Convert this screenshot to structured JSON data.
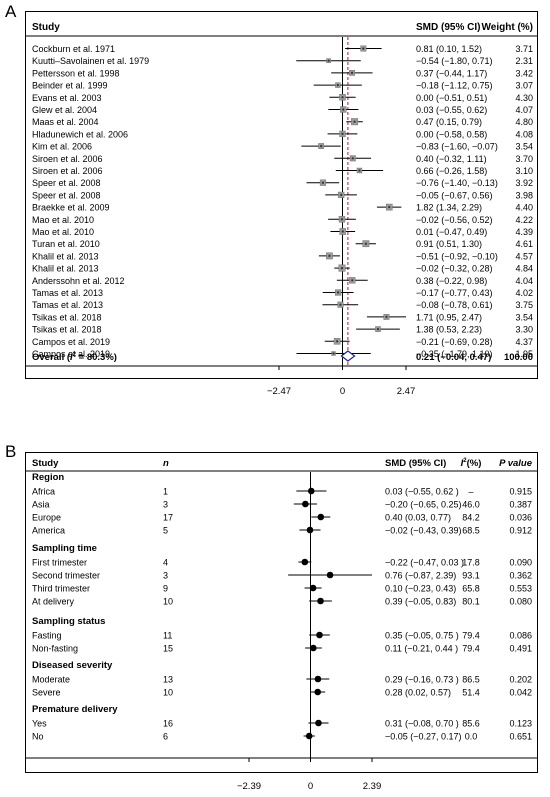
{
  "panel_a": {
    "letter": "A",
    "headers": {
      "study": "Study",
      "smd": "SMD (95% CI)",
      "weight": "Weight (%)"
    },
    "overall": {
      "label_prefix": "Overall (",
      "i2_sym": "I",
      "i2_sup": "2",
      "i2_rest": " = 80.3%)",
      "ci_text": "0.21 (−0.04, 0.47)",
      "weight": "100.00"
    }
  },
  "panel_b": {
    "letter": "B",
    "headers": {
      "study": "Study",
      "n": "n",
      "smd": "SMD (95% CI)",
      "i2_sym": "I",
      "i2_sup": "2",
      "i2_rest": "(%)",
      "p": "P value"
    }
  },
  "chart_data": [
    {
      "type": "forest",
      "panel": "A",
      "xlim": [
        -2.47,
        2.47
      ],
      "ticks": [
        "−2.47",
        "0",
        "2.47"
      ],
      "tick_values": [
        -2.47,
        0,
        2.47
      ],
      "reference_line": 0,
      "overall_line": 0.21,
      "rows": [
        {
          "study": "Cockburn et al. 1971",
          "smd": 0.81,
          "lo": 0.1,
          "hi": 1.52,
          "ci_text": "0.81 (0.10, 1.52)",
          "weight": "3.71"
        },
        {
          "study": "Kuutti–Savolainen et al. 1979",
          "smd": -0.54,
          "lo": -1.8,
          "hi": 0.71,
          "ci_text": "−0.54 (−1.80, 0.71)",
          "weight": "2.31"
        },
        {
          "study": "Pettersson et al. 1998",
          "smd": 0.37,
          "lo": -0.44,
          "hi": 1.17,
          "ci_text": "0.37 (−0.44, 1.17)",
          "weight": "3.42"
        },
        {
          "study": "Beinder et al. 1999",
          "smd": -0.18,
          "lo": -1.12,
          "hi": 0.75,
          "ci_text": "−0.18 (−1.12, 0.75)",
          "weight": "3.07"
        },
        {
          "study": "Evans et al. 2003",
          "smd": 0.0,
          "lo": -0.51,
          "hi": 0.51,
          "ci_text": "0.00 (−0.51, 0.51)",
          "weight": "4.30"
        },
        {
          "study": "Glew et al. 2004",
          "smd": 0.03,
          "lo": -0.55,
          "hi": 0.62,
          "ci_text": "0.03 (−0.55, 0.62)",
          "weight": "4.07"
        },
        {
          "study": "Maas et al. 2004",
          "smd": 0.47,
          "lo": 0.15,
          "hi": 0.79,
          "ci_text": "0.47 (0.15, 0.79)",
          "weight": "4.80"
        },
        {
          "study": "Hladunewich et al. 2006",
          "smd": 0.0,
          "lo": -0.58,
          "hi": 0.58,
          "ci_text": "0.00 (−0.58, 0.58)",
          "weight": "4.08"
        },
        {
          "study": "Kim et al. 2006",
          "smd": -0.83,
          "lo": -1.6,
          "hi": -0.07,
          "ci_text": "−0.83 (−1.60, −0.07)",
          "weight": "3.54"
        },
        {
          "study": "Siroen et al. 2006",
          "smd": 0.4,
          "lo": -0.32,
          "hi": 1.11,
          "ci_text": "0.40 (−0.32, 1.11)",
          "weight": "3.70"
        },
        {
          "study": "Siroen et al. 2006",
          "smd": 0.66,
          "lo": -0.26,
          "hi": 1.58,
          "ci_text": "0.66 (−0.26, 1.58)",
          "weight": "3.10"
        },
        {
          "study": "Speer et al. 2008",
          "smd": -0.76,
          "lo": -1.4,
          "hi": -0.13,
          "ci_text": "−0.76 (−1.40, −0.13)",
          "weight": "3.92"
        },
        {
          "study": "Speer et al. 2008",
          "smd": -0.05,
          "lo": -0.67,
          "hi": 0.56,
          "ci_text": "−0.05 (−0.67, 0.56)",
          "weight": "3.98"
        },
        {
          "study": "Braekke et al. 2009",
          "smd": 1.82,
          "lo": 1.34,
          "hi": 2.29,
          "ci_text": "1.82 (1.34, 2.29)",
          "weight": "4.40"
        },
        {
          "study": "Mao et al. 2010",
          "smd": -0.02,
          "lo": -0.56,
          "hi": 0.52,
          "ci_text": "−0.02 (−0.56, 0.52)",
          "weight": "4.22"
        },
        {
          "study": "Mao et al. 2010",
          "smd": 0.01,
          "lo": -0.47,
          "hi": 0.49,
          "ci_text": "0.01 (−0.47, 0.49)",
          "weight": "4.39"
        },
        {
          "study": "Turan et al. 2010",
          "smd": 0.91,
          "lo": 0.51,
          "hi": 1.3,
          "ci_text": "0.91 (0.51, 1.30)",
          "weight": "4.61"
        },
        {
          "study": "Khalil et al. 2013",
          "smd": -0.51,
          "lo": -0.92,
          "hi": -0.1,
          "ci_text": "−0.51 (−0.92, −0.10)",
          "weight": "4.57"
        },
        {
          "study": "Khalil et al. 2013",
          "smd": -0.02,
          "lo": -0.32,
          "hi": 0.28,
          "ci_text": "−0.02 (−0.32, 0.28)",
          "weight": "4.84"
        },
        {
          "study": "Anderssohn et al. 2012",
          "smd": 0.38,
          "lo": -0.22,
          "hi": 0.98,
          "ci_text": "0.38 (−0.22, 0.98)",
          "weight": "4.04"
        },
        {
          "study": "Tamas et al. 2013",
          "smd": -0.17,
          "lo": -0.77,
          "hi": 0.43,
          "ci_text": "−0.17 (−0.77, 0.43)",
          "weight": "4.02"
        },
        {
          "study": "Tamas et al. 2013",
          "smd": -0.08,
          "lo": -0.78,
          "hi": 0.61,
          "ci_text": "−0.08 (−0.78, 0.61)",
          "weight": "3.75"
        },
        {
          "study": "Tsikas et al. 2018",
          "smd": 1.71,
          "lo": 0.95,
          "hi": 2.47,
          "ci_text": "1.71 (0.95, 2.47)",
          "weight": "3.54"
        },
        {
          "study": "Tsikas et al. 2018",
          "smd": 1.38,
          "lo": 0.53,
          "hi": 2.23,
          "ci_text": "1.38 (0.53, 2.23)",
          "weight": "3.30"
        },
        {
          "study": "Campos et al. 2019",
          "smd": -0.21,
          "lo": -0.69,
          "hi": 0.28,
          "ci_text": "−0.21 (−0.69, 0.28)",
          "weight": "4.37"
        },
        {
          "study": "Campos et al. 2019",
          "smd": -0.35,
          "lo": -1.79,
          "hi": 1.1,
          "ci_text": "−0.35 (−1.79, 1.10)",
          "weight": "1.95"
        }
      ],
      "overall": {
        "smd": 0.21,
        "lo": -0.04,
        "hi": 0.47
      },
      "colors": {
        "box": "#9a9a9a",
        "diamond": "#1a2a8c",
        "overall_line": "#a0203a"
      }
    },
    {
      "type": "forest",
      "panel": "B",
      "xlim": [
        -2.39,
        2.39
      ],
      "ticks": [
        "−2.39",
        "0",
        "2.39"
      ],
      "tick_values": [
        -2.39,
        0,
        2.39
      ],
      "reference_line": 0,
      "groups": [
        {
          "name": "Region",
          "rows": [
            {
              "label": "Africa",
              "n": "1",
              "smd": 0.03,
              "lo": -0.55,
              "hi": 0.62,
              "ci_text": "0.03 (−0.55, 0.62 )",
              "i2": "–",
              "p": "0.915"
            },
            {
              "label": "Asia",
              "n": "3",
              "smd": -0.2,
              "lo": -0.65,
              "hi": 0.25,
              "ci_text": "−0.20 (−0.65, 0.25)",
              "i2": "46.0",
              "p": "0.387"
            },
            {
              "label": "Europe",
              "n": "17",
              "smd": 0.4,
              "lo": 0.03,
              "hi": 0.77,
              "ci_text": "0.40 (0.03, 0.77)",
              "i2": "84.2",
              "p": "0.036"
            },
            {
              "label": "America",
              "n": "5",
              "smd": -0.02,
              "lo": -0.43,
              "hi": 0.39,
              "ci_text": "−0.02 (−0.43, 0.39)",
              "i2": "68.5",
              "p": "0.912"
            }
          ]
        },
        {
          "name": "Sampling time",
          "rows": [
            {
              "label": "First trimester",
              "n": "4",
              "smd": -0.22,
              "lo": -0.47,
              "hi": 0.03,
              "ci_text": "−0.22 (−0.47, 0.03 )",
              "i2": "17.8",
              "p": "0.090"
            },
            {
              "label": "Second trimester",
              "n": "3",
              "smd": 0.76,
              "lo": -0.87,
              "hi": 2.39,
              "ci_text": "0.76 (−0.87, 2.39)",
              "i2": "93.1",
              "p": "0.362"
            },
            {
              "label": "Third trimester",
              "n": "9",
              "smd": 0.1,
              "lo": -0.23,
              "hi": 0.43,
              "ci_text": "0.10 (−0.23, 0.43)",
              "i2": "65.8",
              "p": "0.553"
            },
            {
              "label": "At delivery",
              "n": "10",
              "smd": 0.39,
              "lo": -0.05,
              "hi": 0.83,
              "ci_text": "0.39 (−0.05, 0.83)",
              "i2": "80.1",
              "p": "0.080"
            }
          ]
        },
        {
          "name": "Sampling status",
          "rows": [
            {
              "label": "Fasting",
              "n": "11",
              "smd": 0.35,
              "lo": -0.05,
              "hi": 0.75,
              "ci_text": "0.35 (−0.05, 0.75 )",
              "i2": "79.4",
              "p": "0.086"
            },
            {
              "label": "Non-fasting",
              "n": "15",
              "smd": 0.11,
              "lo": -0.21,
              "hi": 0.44,
              "ci_text": "0.11 (−0.21, 0.44 )",
              "i2": "79.4",
              "p": "0.491"
            }
          ]
        },
        {
          "name": "Diseased severity",
          "rows": [
            {
              "label": "Moderate",
              "n": "13",
              "smd": 0.29,
              "lo": -0.16,
              "hi": 0.73,
              "ci_text": "0.29 (−0.16, 0.73 )",
              "i2": "86.5",
              "p": "0.202"
            },
            {
              "label": "Severe",
              "n": "10",
              "smd": 0.28,
              "lo": 0.02,
              "hi": 0.57,
              "ci_text": "0.28 (0.02, 0.57)",
              "i2": "51.4",
              "p": "0.042"
            }
          ]
        },
        {
          "name": "Premature delivery",
          "rows": [
            {
              "label": "Yes",
              "n": "16",
              "smd": 0.31,
              "lo": -0.08,
              "hi": 0.7,
              "ci_text": "0.31 (−0.08, 0.70 )",
              "i2": "85.6",
              "p": "0.123"
            },
            {
              "label": "No",
              "n": "6",
              "smd": -0.05,
              "lo": -0.27,
              "hi": 0.17,
              "ci_text": "−0.05 (−0.27, 0.17)",
              "i2": "0.0",
              "p": "0.651"
            }
          ]
        }
      ]
    }
  ]
}
